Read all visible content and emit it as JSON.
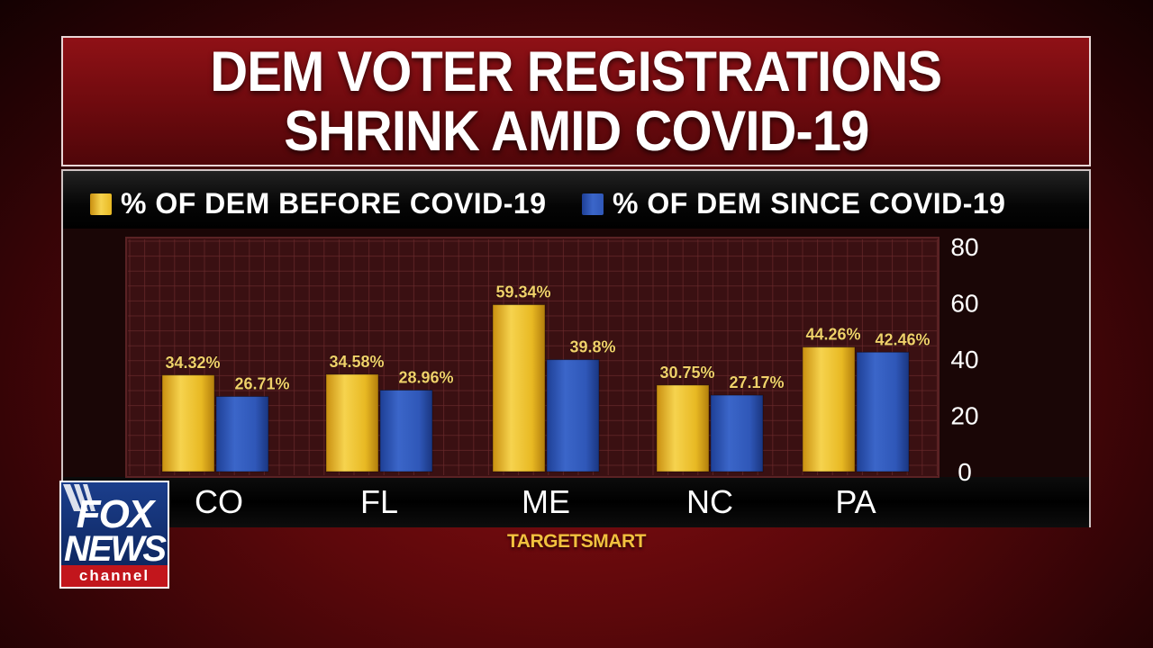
{
  "title": {
    "line1": "DEM VOTER REGISTRATIONS",
    "line2": "SHRINK AMID COVID-19"
  },
  "source": "TARGETSMART",
  "logo": {
    "fox": "FOX",
    "news": "NEWS",
    "channel": "channel"
  },
  "colors": {
    "before": "#e8b923",
    "since": "#2f57b8",
    "label": "#f2d06a",
    "background": "#6d0a0e"
  },
  "chart_data": {
    "type": "bar",
    "categories": [
      "CO",
      "FL",
      "ME",
      "NC",
      "PA"
    ],
    "series": [
      {
        "name": "% OF DEM BEFORE COVID-19",
        "values": [
          34.32,
          34.58,
          59.34,
          30.75,
          44.26
        ],
        "labels": [
          "34.32%",
          "34.58%",
          "59.34%",
          "30.75%",
          "44.26%"
        ]
      },
      {
        "name": "% OF DEM SINCE COVID-19",
        "values": [
          26.71,
          28.96,
          39.8,
          27.17,
          42.46
        ],
        "labels": [
          "26.71%",
          "28.96%",
          "39.8%",
          "27.17%",
          "42.46%"
        ]
      }
    ],
    "ylim": [
      0,
      80
    ],
    "yticks": [
      "0",
      "20",
      "40",
      "60",
      "80"
    ],
    "grid": true,
    "legend_position": "top",
    "y_axis_position": "right"
  }
}
